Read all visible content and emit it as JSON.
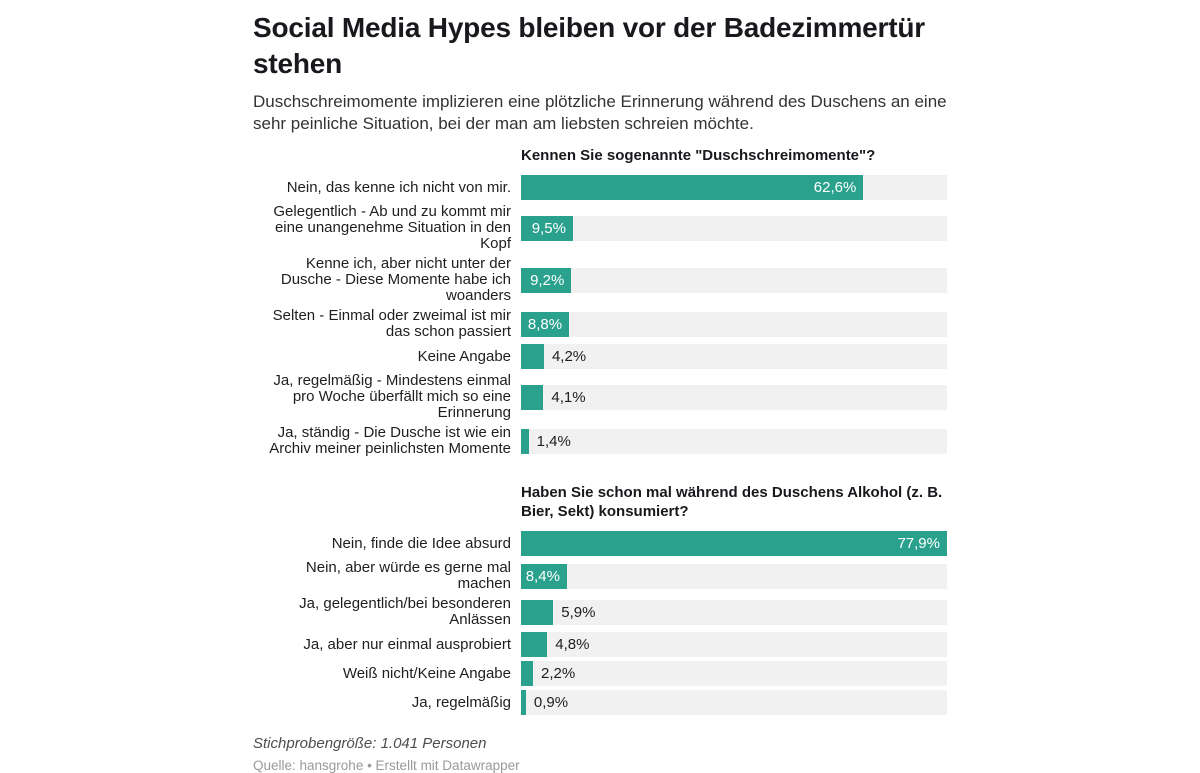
{
  "header": {
    "title": "Social Media Hypes bleiben vor der Badezimmertür stehen",
    "subtitle": "Duschschreimomente implizieren eine plötzliche Erinnerung während des Duschens an eine sehr peinliche Situation, bei der man am liebsten schreien möchte."
  },
  "colors": {
    "bar": "#2aa18c",
    "track": "#f1f1f1",
    "value_inside": "#ffffff",
    "value_outside": "#1d1e20"
  },
  "chart_data": [
    {
      "type": "bar",
      "title": "Kennen Sie sogenannte \"Duschschreimomente\"?",
      "categories": [
        "Nein, das kenne ich nicht von mir.",
        "Gelegentlich - Ab und zu kommt mir eine unangenehme Situation in den Kopf",
        "Kenne ich, aber nicht unter der Dusche - Diese Momente habe ich woanders",
        "Selten - Einmal oder zweimal ist mir das schon passiert",
        "Keine Angabe",
        "Ja, regelmäßig - Mindestens einmal pro Woche überfällt mich so eine Erinnerung",
        "Ja, ständig - Die Dusche ist wie ein Archiv meiner peinlichsten Momente"
      ],
      "values": [
        62.6,
        9.5,
        9.2,
        8.8,
        4.2,
        4.1,
        1.4
      ],
      "value_labels": [
        "62,6%",
        "9,5%",
        "9,2%",
        "8,8%",
        "4,2%",
        "4,1%",
        "1,4%"
      ],
      "unit": "%",
      "xlim": [
        0,
        77.9
      ],
      "grid": false,
      "legend": "none"
    },
    {
      "type": "bar",
      "title": "Haben Sie schon mal während des Duschens Alkohol (z. B. Bier, Sekt) konsumiert?",
      "categories": [
        "Nein, finde die Idee absurd",
        "Nein, aber würde es gerne mal machen",
        "Ja, gelegentlich/bei besonderen Anlässen",
        "Ja, aber nur einmal ausprobiert",
        "Weiß nicht/Keine Angabe",
        "Ja, regelmäßig"
      ],
      "values": [
        77.9,
        8.4,
        5.9,
        4.8,
        2.2,
        0.9
      ],
      "value_labels": [
        "77,9%",
        "8,4%",
        "5,9%",
        "4,8%",
        "2,2%",
        "0,9%"
      ],
      "unit": "%",
      "xlim": [
        0,
        77.9
      ],
      "grid": false,
      "legend": "none"
    }
  ],
  "footer": {
    "note": "Stichprobengröße: 1.041 Personen",
    "source": "Quelle: hansgrohe • Erstellt mit Datawrapper"
  }
}
